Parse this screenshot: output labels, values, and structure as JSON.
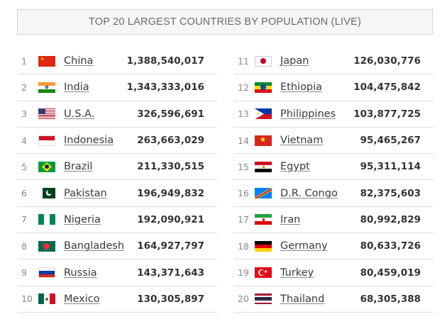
{
  "title": "TOP 20 LARGEST COUNTRIES BY POPULATION (LIVE)",
  "countries": [
    {
      "rank": "1",
      "name": "China",
      "population": "1,388,540,017",
      "flag_icon": "china-flag-icon"
    },
    {
      "rank": "2",
      "name": "India",
      "population": "1,343,333,016",
      "flag_icon": "india-flag-icon"
    },
    {
      "rank": "3",
      "name": "U.S.A.",
      "population": "326,596,691",
      "flag_icon": "usa-flag-icon"
    },
    {
      "rank": "4",
      "name": "Indonesia",
      "population": "263,663,029",
      "flag_icon": "indonesia-flag-icon"
    },
    {
      "rank": "5",
      "name": "Brazil",
      "population": "211,330,515",
      "flag_icon": "brazil-flag-icon"
    },
    {
      "rank": "6",
      "name": "Pakistan",
      "population": "196,949,832",
      "flag_icon": "pakistan-flag-icon"
    },
    {
      "rank": "7",
      "name": "Nigeria",
      "population": "192,090,921",
      "flag_icon": "nigeria-flag-icon"
    },
    {
      "rank": "8",
      "name": "Bangladesh",
      "population": "164,927,797",
      "flag_icon": "bangladesh-flag-icon"
    },
    {
      "rank": "9",
      "name": "Russia",
      "population": "143,371,643",
      "flag_icon": "russia-flag-icon"
    },
    {
      "rank": "10",
      "name": "Mexico",
      "population": "130,305,897",
      "flag_icon": "mexico-flag-icon"
    },
    {
      "rank": "11",
      "name": "Japan",
      "population": "126,030,776",
      "flag_icon": "japan-flag-icon"
    },
    {
      "rank": "12",
      "name": "Ethiopia",
      "population": "104,475,842",
      "flag_icon": "ethiopia-flag-icon"
    },
    {
      "rank": "13",
      "name": "Philippines",
      "population": "103,877,725",
      "flag_icon": "philippines-flag-icon"
    },
    {
      "rank": "14",
      "name": "Vietnam",
      "population": "95,465,267",
      "flag_icon": "vietnam-flag-icon"
    },
    {
      "rank": "15",
      "name": "Egypt",
      "population": "95,311,114",
      "flag_icon": "egypt-flag-icon"
    },
    {
      "rank": "16",
      "name": "D.R. Congo",
      "population": "82,375,603",
      "flag_icon": "dr-congo-flag-icon"
    },
    {
      "rank": "17",
      "name": "Iran",
      "population": "80,992,829",
      "flag_icon": "iran-flag-icon"
    },
    {
      "rank": "18",
      "name": "Germany",
      "population": "80,633,726",
      "flag_icon": "germany-flag-icon"
    },
    {
      "rank": "19",
      "name": "Turkey",
      "population": "80,459,019",
      "flag_icon": "turkey-flag-icon"
    },
    {
      "rank": "20",
      "name": "Thailand",
      "population": "68,305,388",
      "flag_icon": "thailand-flag-icon"
    }
  ]
}
